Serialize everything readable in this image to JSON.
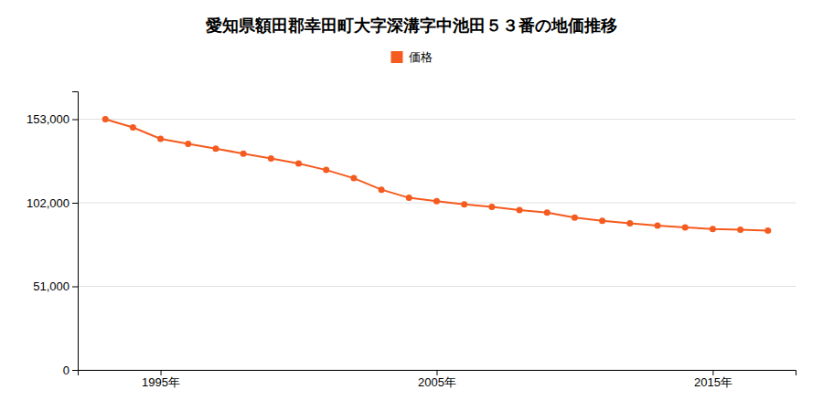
{
  "chart_data": {
    "type": "line",
    "title": "愛知県額田郡幸田町大字深溝字中池田５３番の地価推移",
    "x": [
      1993,
      1994,
      1995,
      1996,
      1997,
      1998,
      1999,
      2000,
      2001,
      2002,
      2003,
      2004,
      2005,
      2006,
      2007,
      2008,
      2009,
      2010,
      2011,
      2012,
      2013,
      2014,
      2015,
      2016,
      2017
    ],
    "series": [
      {
        "name": "価格",
        "color": "#f55a1e",
        "marker": "circle",
        "line_style": "solid",
        "values": [
          153000,
          148000,
          141000,
          138000,
          135000,
          132000,
          129000,
          126000,
          122000,
          117000,
          110000,
          105000,
          103000,
          101000,
          99500,
          97500,
          96000,
          93000,
          91000,
          89500,
          88000,
          87000,
          86000,
          85500,
          85000
        ]
      }
    ],
    "xlim": [
      1992,
      2018
    ],
    "xticks": [
      {
        "value": 1995,
        "label": "1995年"
      },
      {
        "value": 2005,
        "label": "2005年"
      },
      {
        "value": 2015,
        "label": "2015年"
      }
    ],
    "ylim": [
      0,
      170000
    ],
    "yticks": [
      0,
      {
        "value": 51000,
        "label": "51,000"
      },
      {
        "value": 102000,
        "label": "102,000"
      },
      {
        "value": 153000,
        "label": "153,000"
      }
    ],
    "grid": true,
    "legend": "top"
  }
}
